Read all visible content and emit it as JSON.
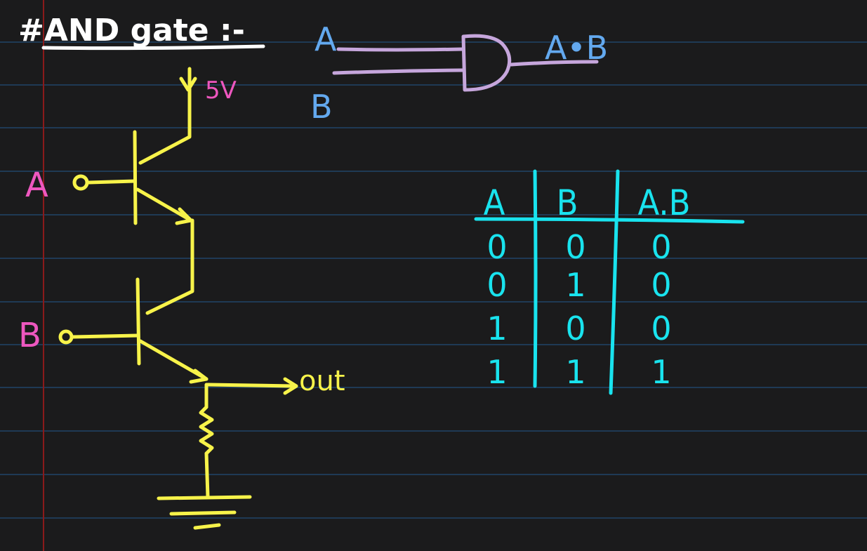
{
  "title": "#AND gate :-",
  "colors": {
    "background": "#1b1b1c",
    "ruled_line": "#1f3a55",
    "margin_line": "#8b1a1a",
    "title": "#ffffff",
    "gate_label": "#63a9ef",
    "gate_symbol": "#c6a6dc",
    "circuit": "#f7f34a",
    "circuit_label": "#ee57bf",
    "truth_table": "#19e3ee"
  },
  "and_gate": {
    "input_a": "A",
    "input_b": "B",
    "output": "A•B"
  },
  "circuit": {
    "supply": "5V",
    "input_a": "A",
    "input_b": "B",
    "output": "out"
  },
  "truth_table": {
    "headers": [
      "A",
      "B",
      "A.B"
    ],
    "rows": [
      [
        "0",
        "0",
        "0"
      ],
      [
        "0",
        "1",
        "0"
      ],
      [
        "1",
        "0",
        "0"
      ],
      [
        "1",
        "1",
        "1"
      ]
    ]
  }
}
